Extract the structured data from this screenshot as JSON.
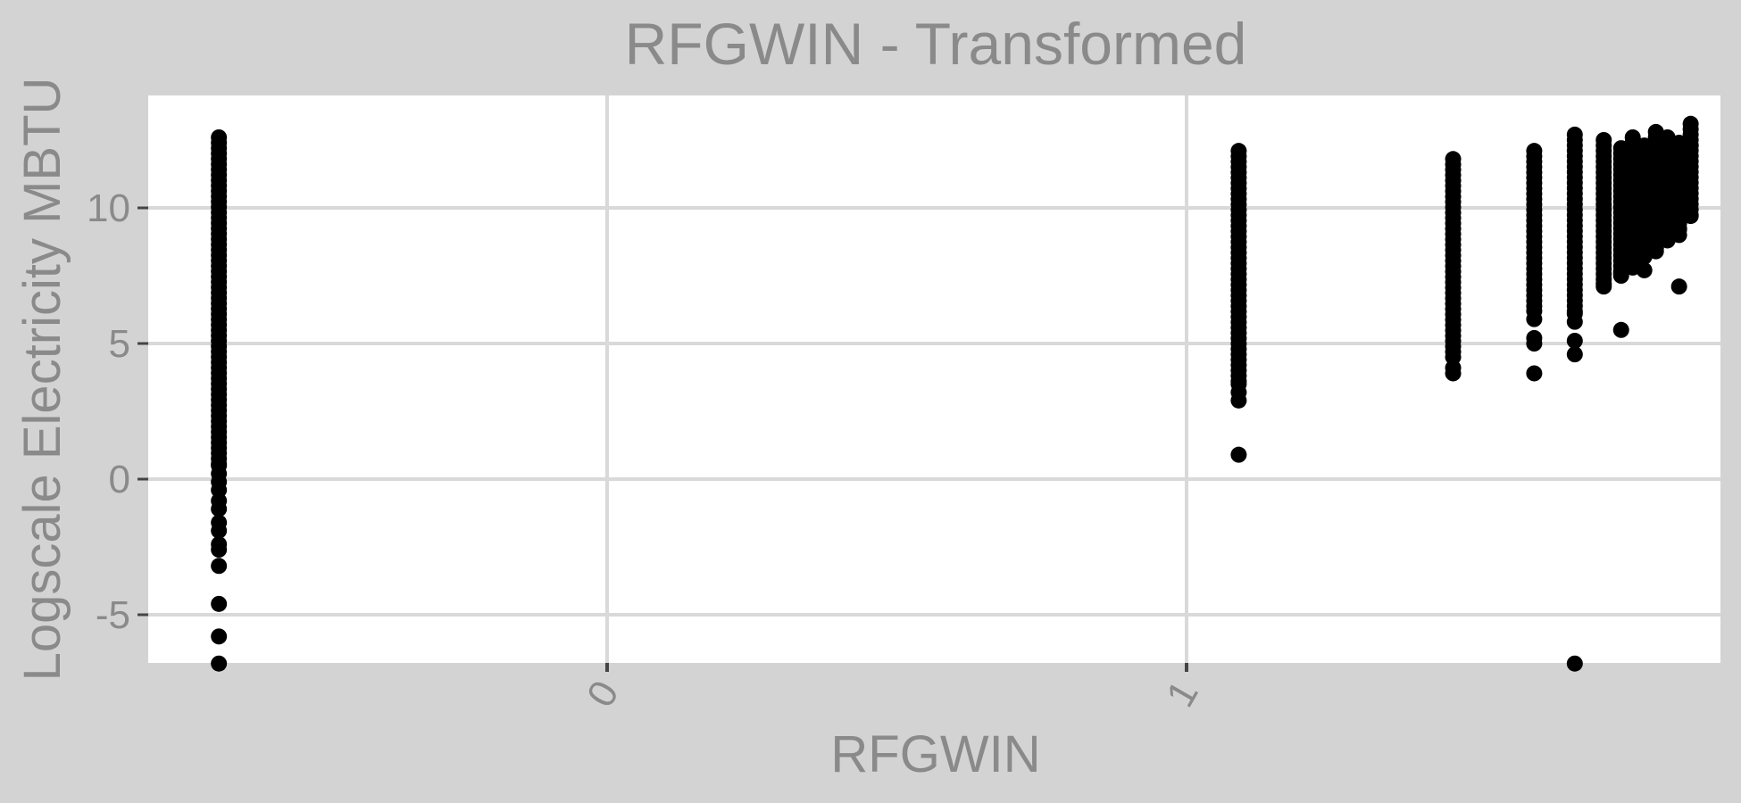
{
  "chart_data": {
    "type": "scatter",
    "title": "RFGWIN - Transformed",
    "xlabel": "RFGWIN",
    "ylabel": "Logscale Electricity MBTU",
    "xlim": [
      -0.67,
      1.93
    ],
    "ylim": [
      -6.8,
      14.1
    ],
    "x_ticks": [
      0,
      1
    ],
    "x_tick_labels": [
      "0",
      "1"
    ],
    "y_ticks": [
      -5,
      0,
      5,
      10
    ],
    "y_tick_labels": [
      "-5",
      "0",
      "5",
      "10"
    ],
    "grid": true,
    "legend": "none",
    "point_color": "#000000",
    "clusters": [
      {
        "x": -0.67,
        "ymin": 0.5,
        "ymax": 12.6,
        "outliers": [
          0.2,
          -0.1,
          -0.4,
          -0.8,
          -1.1,
          -1.6,
          -1.9,
          -2.4,
          -2.6,
          -3.2,
          -4.6,
          -5.8,
          -6.8
        ]
      },
      {
        "x": 1.09,
        "ymin": 3.5,
        "ymax": 12.1,
        "outliers": [
          3.2,
          2.9,
          0.9
        ]
      },
      {
        "x": 1.46,
        "ymin": 4.5,
        "ymax": 11.8,
        "outliers": [
          4.1,
          3.9
        ]
      },
      {
        "x": 1.6,
        "ymin": 6.2,
        "ymax": 12.1,
        "outliers": [
          5.9,
          5.2,
          5.0,
          3.9
        ]
      },
      {
        "x": 1.67,
        "ymin": 6.1,
        "ymax": 12.7,
        "outliers": [
          5.8,
          5.1,
          4.6,
          -6.8
        ]
      },
      {
        "x": 1.72,
        "ymin": 7.2,
        "ymax": 12.5,
        "outliers": [
          7.1
        ]
      },
      {
        "x": 1.75,
        "ymin": 7.6,
        "ymax": 12.2,
        "outliers": [
          7.5,
          5.5
        ]
      },
      {
        "x": 1.77,
        "ymin": 7.9,
        "ymax": 12.6,
        "outliers": [
          7.8
        ]
      },
      {
        "x": 1.79,
        "ymin": 8.2,
        "ymax": 12.3,
        "outliers": [
          7.7
        ]
      },
      {
        "x": 1.81,
        "ymin": 8.5,
        "ymax": 12.8,
        "outliers": [
          8.4
        ]
      },
      {
        "x": 1.83,
        "ymin": 8.8,
        "ymax": 12.6,
        "outliers": []
      },
      {
        "x": 1.85,
        "ymin": 9.2,
        "ymax": 12.4,
        "outliers": [
          9.0,
          7.1
        ]
      },
      {
        "x": 1.87,
        "ymin": 9.7,
        "ymax": 13.1,
        "outliers": [
          12.3
        ]
      }
    ]
  }
}
